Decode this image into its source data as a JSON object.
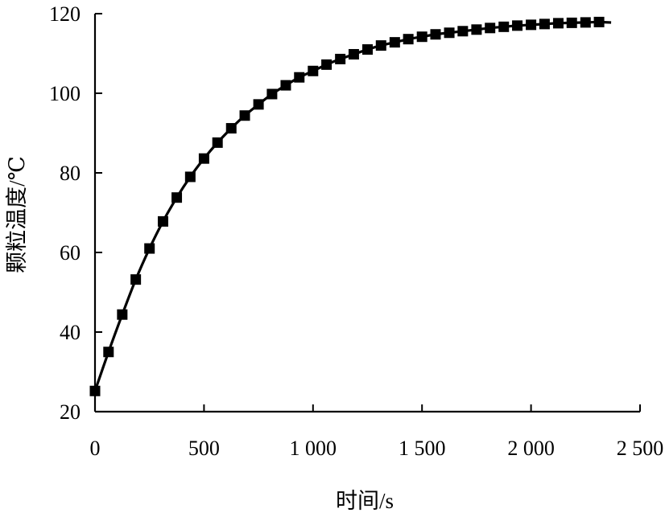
{
  "chart_data": {
    "type": "line",
    "xlabel": "时间/s",
    "ylabel": "颗粒温度/℃",
    "xlim": [
      0,
      2500
    ],
    "ylim": [
      20,
      120
    ],
    "x_ticks": [
      0,
      500,
      1000,
      1500,
      2000,
      2500
    ],
    "x_tick_labels": [
      "0",
      "500",
      "1 000",
      "1 500",
      "2 000",
      "2 500"
    ],
    "y_ticks": [
      20,
      40,
      60,
      80,
      100,
      120
    ],
    "y_tick_labels": [
      "20",
      "40",
      "60",
      "80",
      "100",
      "120"
    ],
    "grid": false,
    "series": [
      {
        "style": "line-with-square-markers",
        "color": "#000000",
        "x": [
          0,
          62,
          125,
          187,
          250,
          312,
          375,
          437,
          500,
          562,
          625,
          687,
          750,
          812,
          875,
          937,
          1000,
          1062,
          1125,
          1187,
          1250,
          1312,
          1375,
          1437,
          1500,
          1562,
          1625,
          1687,
          1750,
          1812,
          1875,
          1937,
          2000,
          2062,
          2125,
          2187,
          2250,
          2312
        ],
        "y": [
          25.2,
          35.0,
          44.4,
          53.2,
          61.0,
          67.8,
          73.8,
          79.0,
          83.6,
          87.6,
          91.2,
          94.4,
          97.2,
          99.8,
          102.0,
          104.0,
          105.6,
          107.2,
          108.6,
          109.8,
          111.0,
          112.0,
          112.8,
          113.6,
          114.2,
          114.8,
          115.2,
          115.6,
          116.0,
          116.4,
          116.7,
          117.0,
          117.2,
          117.4,
          117.6,
          117.7,
          117.8,
          117.9
        ]
      }
    ]
  }
}
